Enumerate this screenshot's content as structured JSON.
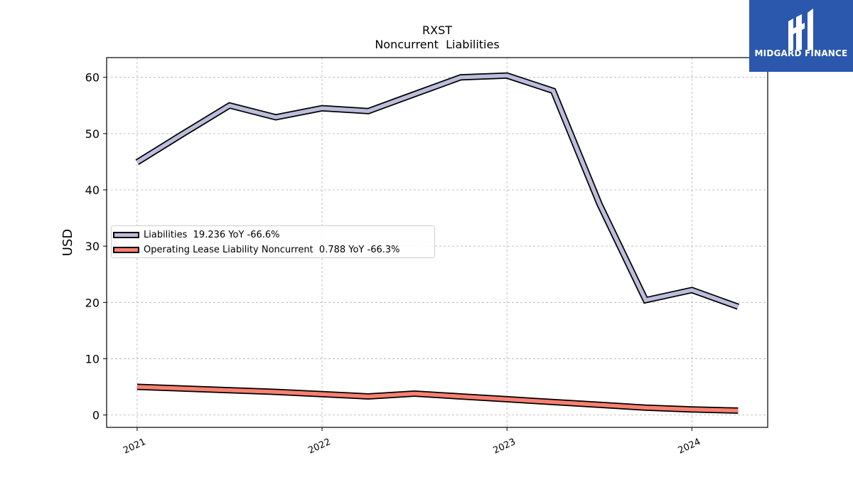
{
  "logo": {
    "text": "MIDGARD FINANCE",
    "background": "#2b58ac"
  },
  "chart_data": {
    "type": "line",
    "title": "RXST",
    "subtitle": "Noncurrent  Liabilities",
    "ylabel": "USD",
    "xlabel": "",
    "ylim": [
      -2.2,
      63.5
    ],
    "y_ticks": [
      0,
      10,
      20,
      30,
      40,
      50,
      60
    ],
    "x_ticks": [
      "2021",
      "2022",
      "2023",
      "2024"
    ],
    "x_ticks_decimal_year": [
      2021.0,
      2022.0,
      2023.0,
      2024.0
    ],
    "xlim": [
      2020.835,
      2024.41
    ],
    "grid": true,
    "legend_placement": "center-left",
    "x": [
      2021.0,
      2021.25,
      2021.5,
      2021.75,
      2022.0,
      2022.25,
      2022.5,
      2022.75,
      2023.0,
      2023.25,
      2023.5,
      2023.75,
      2024.0,
      2024.25
    ],
    "series": [
      {
        "name": "Liabilities",
        "legend_label": "Liabilities  19.236 YoY -66.6%",
        "color": "#bcbddc",
        "values": [
          44.9,
          50.0,
          55.0,
          52.9,
          54.5,
          54.0,
          57.0,
          60.0,
          60.3,
          57.6,
          37.5,
          20.4,
          22.2,
          19.236
        ]
      },
      {
        "name": "Operating Lease Liability Noncurrent",
        "legend_label": "Operating Lease Liability Noncurrent  0.788 YoY -66.3%",
        "color": "#fa8072",
        "values": [
          5.0,
          4.7,
          4.4,
          4.1,
          3.7,
          3.3,
          3.8,
          3.3,
          2.8,
          2.3,
          1.8,
          1.3,
          1.0,
          0.788
        ]
      }
    ]
  }
}
